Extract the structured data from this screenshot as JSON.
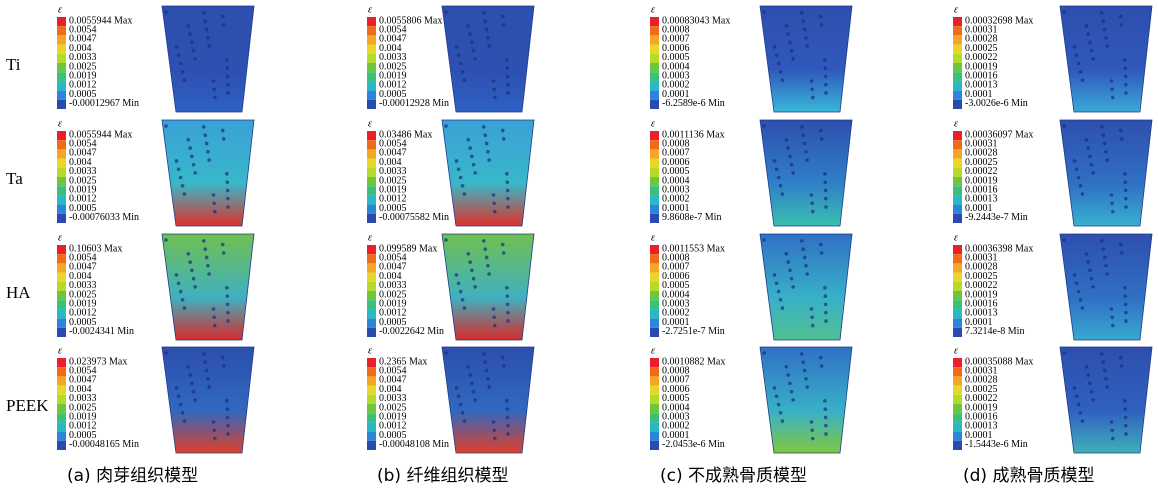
{
  "symbol": "ε",
  "row_labels": [
    "Ti",
    "Ta",
    "HA",
    "PEEK"
  ],
  "columns": [
    {
      "caption": "(a) 肉芽组织模型",
      "tick_labels": [
        "0.0054",
        "0.0047",
        "0.004",
        "0.0033",
        "0.0025",
        "0.0019",
        "0.0012",
        "0.0005"
      ],
      "panels": [
        {
          "max": "0.0055944 Max",
          "min": "-0.00012967 Min"
        },
        {
          "max": "0.0055944 Max",
          "min": "-0.00076033 Min"
        },
        {
          "max": "0.10603 Max",
          "min": "-0.0024341 Min"
        },
        {
          "max": "0.023973 Max",
          "min": "-0.00048165 Min"
        }
      ]
    },
    {
      "caption": "(b) 纤维组织模型",
      "tick_labels": [
        "0.0054",
        "0.0047",
        "0.004",
        "0.0033",
        "0.0025",
        "0.0019",
        "0.0012",
        "0.0005"
      ],
      "panels": [
        {
          "max": "0.0055806 Max",
          "min": "-0.00012928 Min"
        },
        {
          "max": "0.03486 Max",
          "min": "-0.00075582 Min"
        },
        {
          "max": "0.099589 Max",
          "min": "-0.0022642 Min"
        },
        {
          "max": "0.2365 Max",
          "min": "-0.00048108 Min"
        }
      ]
    },
    {
      "caption": "(c) 不成熟骨质模型",
      "tick_labels": [
        "0.0008",
        "0.0007",
        "0.0006",
        "0.0005",
        "0.0004",
        "0.0003",
        "0.0002",
        "0.0001"
      ],
      "panels": [
        {
          "max": "0.00083043 Max",
          "min": "-6.2589e-6 Min"
        },
        {
          "max": "0.0011136 Max",
          "min": "9.8608e-7 Min"
        },
        {
          "max": "0.0011553 Max",
          "min": "-2.7251e-7 Min"
        },
        {
          "max": "0.0010882 Max",
          "min": "-2.0453e-6 Min"
        }
      ]
    },
    {
      "caption": "(d) 成熟骨质模型",
      "tick_labels": [
        "0.00031",
        "0.00028",
        "0.00025",
        "0.00022",
        "0.00019",
        "0.00016",
        "0.00013",
        "0.0001"
      ],
      "panels": [
        {
          "max": "0.00032698 Max",
          "min": "-3.0026e-6 Min"
        },
        {
          "max": "0.00036097 Max",
          "min": "-9.2443e-7 Min"
        },
        {
          "max": "0.00036398 Max",
          "min": "7.3214e-8 Min"
        },
        {
          "max": "0.00035088 Max",
          "min": "-1.5443e-6 Min"
        }
      ]
    }
  ]
}
